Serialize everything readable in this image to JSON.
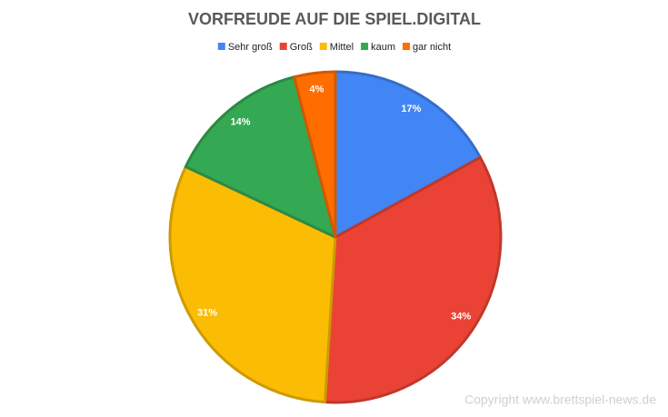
{
  "chart_data": {
    "type": "pie",
    "title": "VORFREUDE AUF DIE SPIEL.DIGITAL",
    "categories": [
      "Sehr groß",
      "Groß",
      "Mittel",
      "kaum",
      "gar nicht"
    ],
    "values": [
      17,
      34,
      31,
      14,
      4
    ],
    "value_labels": [
      "17%",
      "34%",
      "31%",
      "14%",
      "4%"
    ],
    "colors": [
      "#4285f4",
      "#ea4335",
      "#fbbc04",
      "#34a853",
      "#ff6d01"
    ],
    "legend": "top",
    "watermark": "Copyright www.brettspiel-news.de"
  }
}
